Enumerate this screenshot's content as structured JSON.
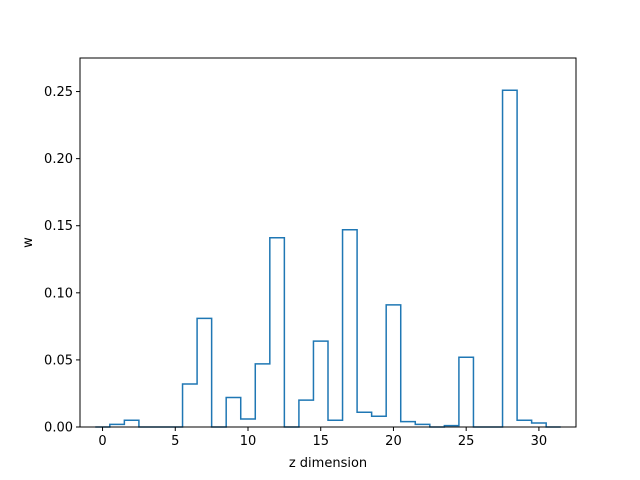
{
  "chart_data": {
    "type": "line",
    "style": "step",
    "title": "",
    "xlabel": "z dimension",
    "ylabel": "w",
    "xlim": [
      -1.55,
      32.55
    ],
    "ylim": [
      0,
      0.275
    ],
    "xticks": [
      0,
      5,
      10,
      15,
      20,
      25,
      30
    ],
    "xtick_labels": [
      "0",
      "5",
      "10",
      "15",
      "20",
      "25",
      "30"
    ],
    "yticks": [
      0.0,
      0.05,
      0.1,
      0.15,
      0.2,
      0.25
    ],
    "ytick_labels": [
      "0.00",
      "0.05",
      "0.10",
      "0.15",
      "0.20",
      "0.25"
    ],
    "grid": false,
    "legend": "none",
    "line_color": "#1f77b4",
    "series": [
      {
        "x": [
          0,
          1,
          2,
          3,
          4,
          5,
          6,
          7,
          8,
          9,
          10,
          11,
          12,
          13,
          14,
          15,
          16,
          17,
          18,
          19,
          20,
          21,
          22,
          23,
          24,
          25,
          26,
          27,
          28,
          29,
          30,
          31
        ],
        "values": [
          0.0,
          0.002,
          0.005,
          0.0,
          0.0,
          0.0,
          0.032,
          0.081,
          0.0,
          0.022,
          0.006,
          0.047,
          0.141,
          0.0,
          0.02,
          0.064,
          0.005,
          0.147,
          0.011,
          0.008,
          0.091,
          0.004,
          0.002,
          0.0,
          0.001,
          0.052,
          0.0,
          0.0,
          0.251,
          0.005,
          0.003,
          0.0
        ]
      }
    ]
  }
}
